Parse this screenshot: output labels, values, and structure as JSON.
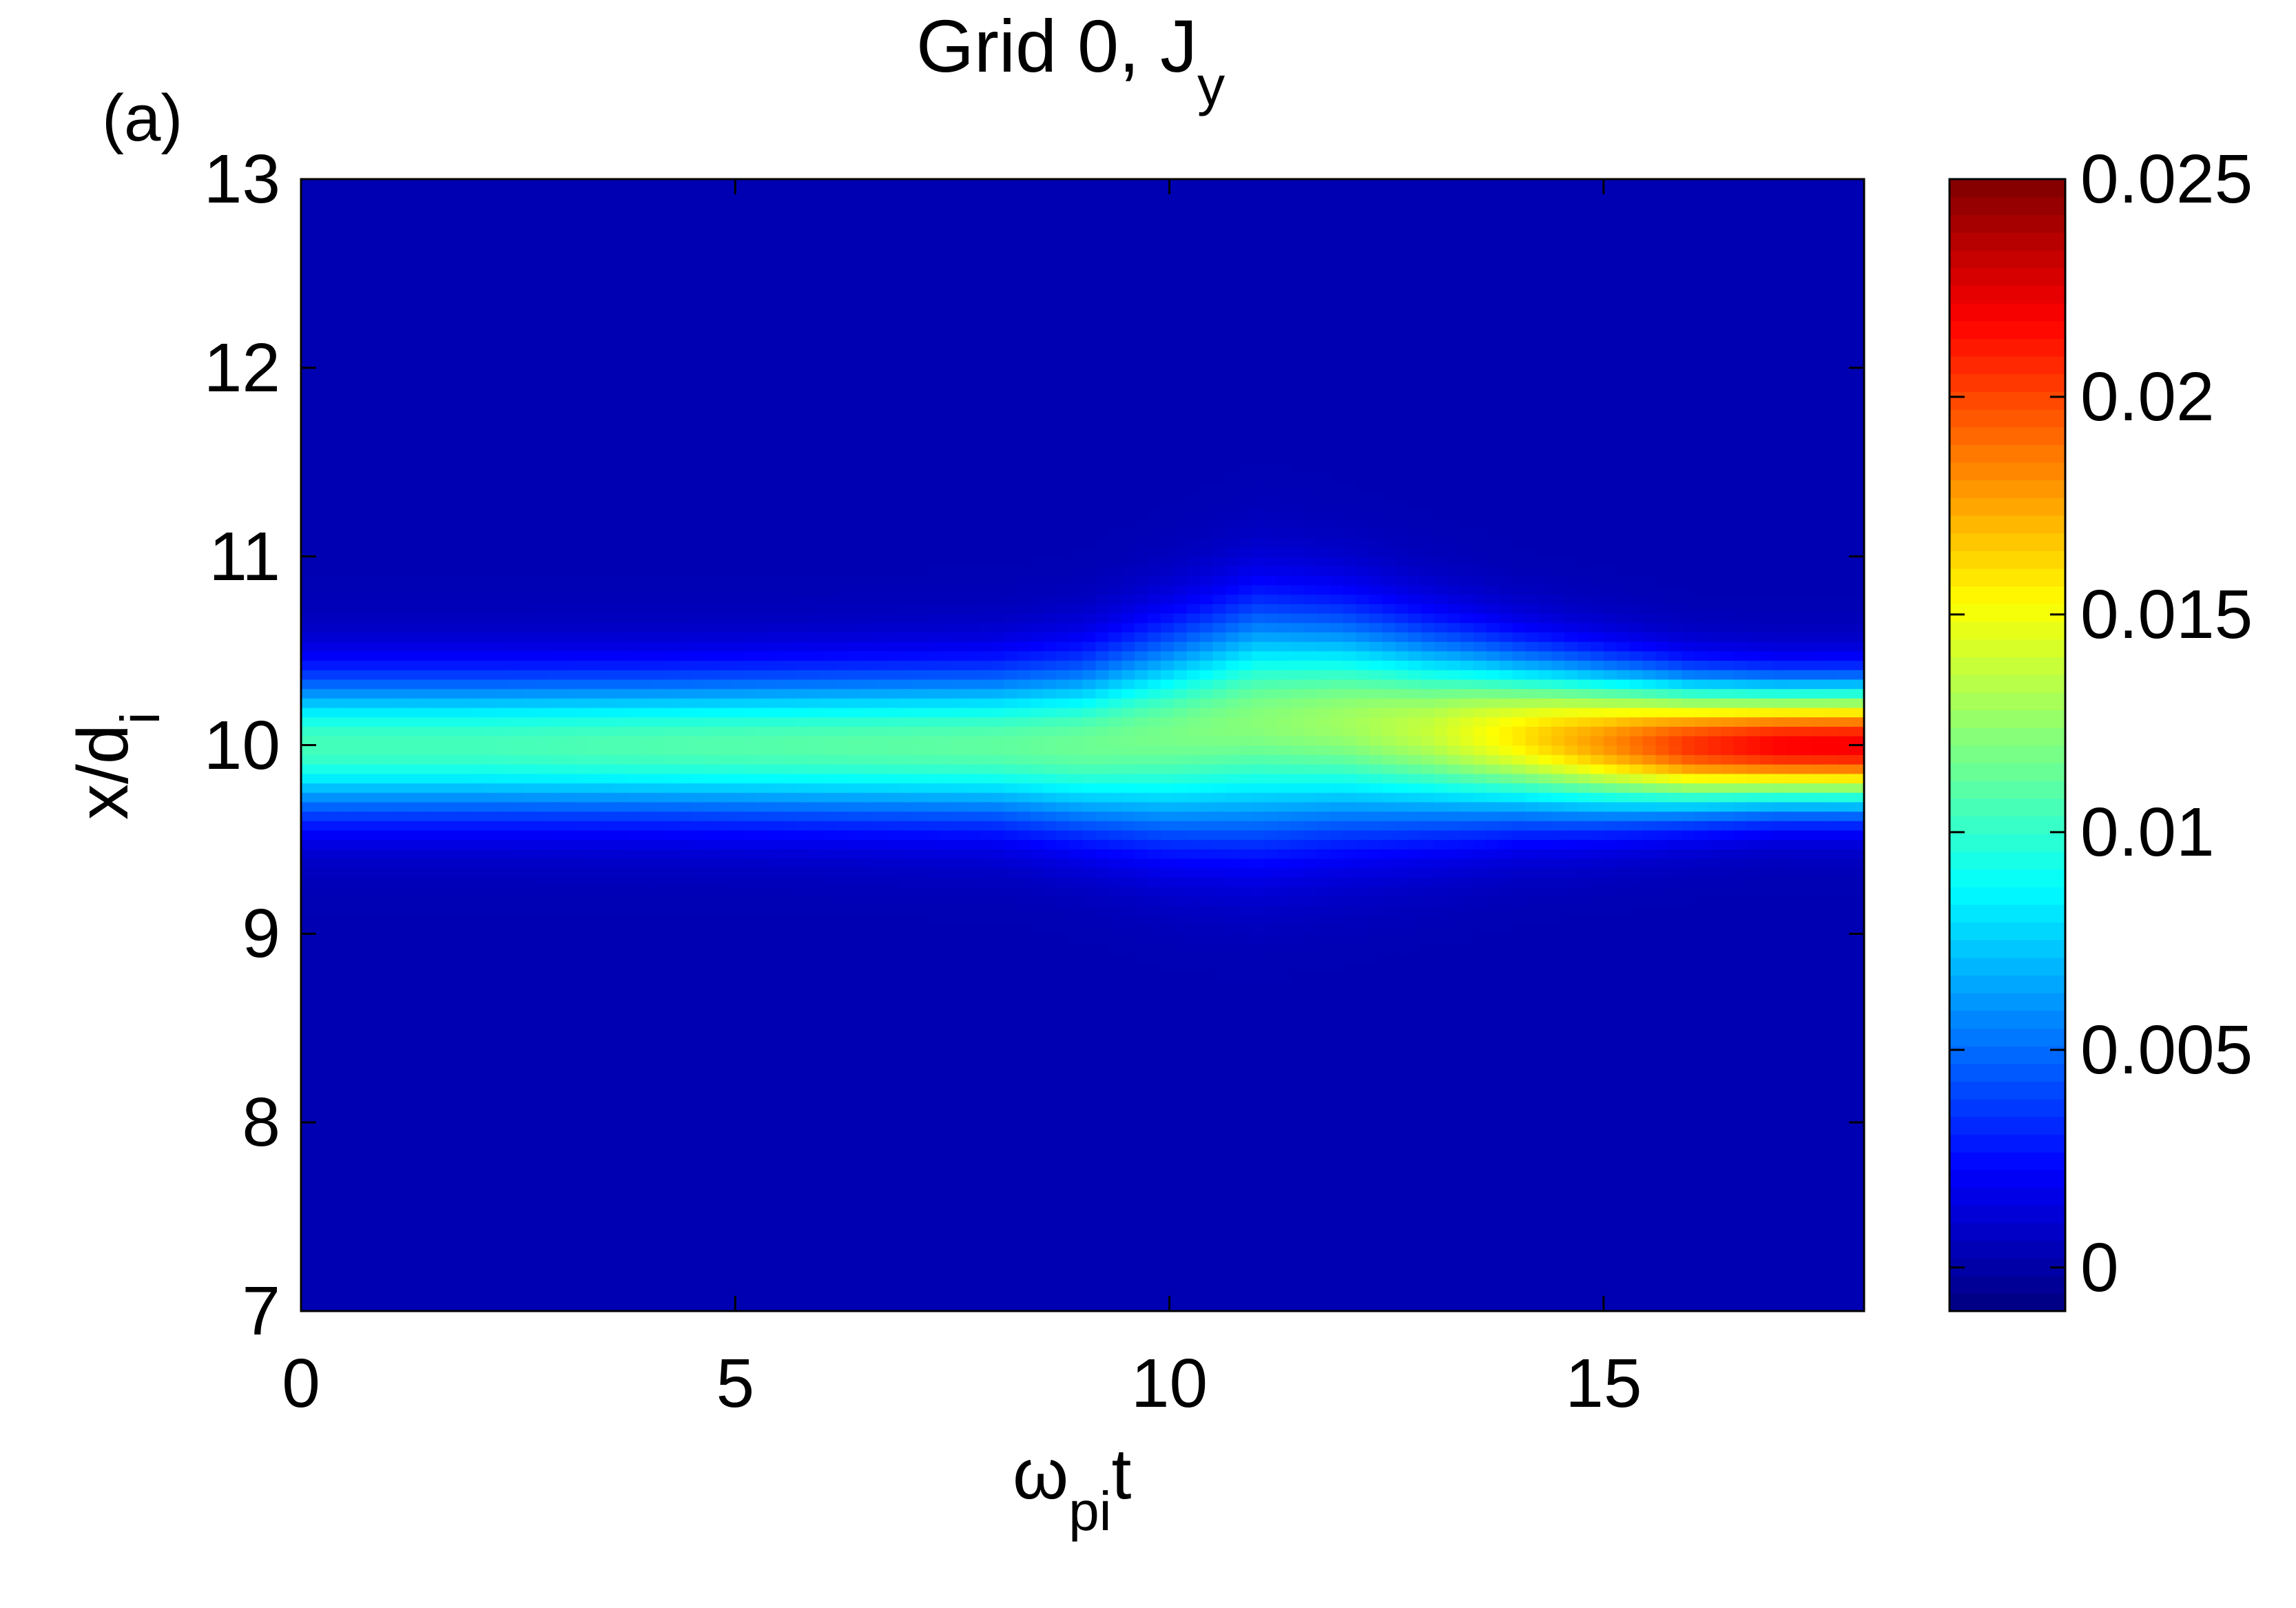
{
  "chart_data": {
    "type": "heatmap",
    "panel_label": "(a)",
    "title": {
      "main": "Grid 0, J",
      "sub": "y"
    },
    "xlabel": {
      "main": "ω",
      "sub": "pi",
      "suffix": "t"
    },
    "ylabel": {
      "main": "x/d",
      "sub": "i"
    },
    "xlim": [
      0,
      18
    ],
    "ylim": [
      7,
      13
    ],
    "x_ticks": [
      "0",
      "5",
      "10",
      "15"
    ],
    "x_tick_values": [
      0,
      5,
      10,
      15
    ],
    "y_ticks": [
      "7",
      "8",
      "9",
      "10",
      "11",
      "12",
      "13"
    ],
    "y_tick_values": [
      7,
      8,
      9,
      10,
      11,
      12,
      13
    ],
    "colorbar": {
      "colormap": "jet",
      "clim": [
        -0.001,
        0.025
      ],
      "ticks": [
        "0",
        "0.005",
        "0.01",
        "0.015",
        "0.02",
        "0.025"
      ],
      "tick_values": [
        0,
        0.005,
        0.01,
        0.015,
        0.02,
        0.025
      ]
    },
    "field": {
      "description_of_profile": "Gaussian current sheet centred near x/d_i = 10, background ~0.0003",
      "background": 0.0003,
      "times": [
        0,
        2,
        4,
        6,
        8,
        9,
        10,
        11,
        12,
        13,
        14,
        15,
        16,
        17,
        18
      ],
      "center": [
        10.0,
        10.0,
        10.0,
        10.0,
        10.0,
        10.0,
        10.05,
        10.12,
        10.12,
        10.08,
        10.05,
        10.02,
        10.0,
        10.0,
        10.0
      ],
      "half_width": [
        0.36,
        0.36,
        0.36,
        0.37,
        0.38,
        0.42,
        0.5,
        0.56,
        0.52,
        0.46,
        0.4,
        0.36,
        0.32,
        0.3,
        0.3
      ],
      "peak": [
        0.0105,
        0.0105,
        0.0108,
        0.011,
        0.0112,
        0.0115,
        0.0118,
        0.0122,
        0.0128,
        0.0138,
        0.0158,
        0.018,
        0.0205,
        0.0218,
        0.022
      ]
    }
  }
}
